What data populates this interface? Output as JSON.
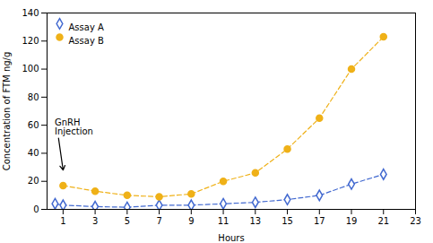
{
  "chart_data": {
    "type": "line",
    "xlabel": "Hours",
    "ylabel": "Concentration of FTM ng/g",
    "xlim": [
      0,
      23
    ],
    "xticks": [
      1,
      3,
      5,
      7,
      9,
      11,
      13,
      15,
      17,
      19,
      21,
      23
    ],
    "ylim": [
      0,
      140
    ],
    "yticks": [
      0,
      20,
      40,
      60,
      80,
      100,
      120,
      140
    ],
    "grid": false,
    "legend": "upper left",
    "series": [
      {
        "name": "Assay A",
        "marker": "diamond",
        "line_style": "dashed",
        "x": [
          0.5,
          1,
          3,
          5,
          7,
          9,
          11,
          13,
          15,
          17,
          19,
          21
        ],
        "values": [
          4,
          3,
          2,
          1.5,
          3,
          3,
          4,
          5,
          7,
          10,
          18,
          25
        ]
      },
      {
        "name": "Assay B",
        "marker": "circle",
        "line_style": "dashed",
        "x": [
          1,
          3,
          5,
          7,
          9,
          11,
          13,
          15,
          17,
          19,
          21
        ],
        "values": [
          17,
          13,
          10,
          9,
          11,
          20,
          26,
          43,
          65,
          100,
          123
        ]
      }
    ],
    "annotations": [
      {
        "text": "GnRH\nInjection",
        "x": 0.7,
        "y": 52,
        "arrow_x": 1.0,
        "arrow_y": 28
      }
    ]
  }
}
